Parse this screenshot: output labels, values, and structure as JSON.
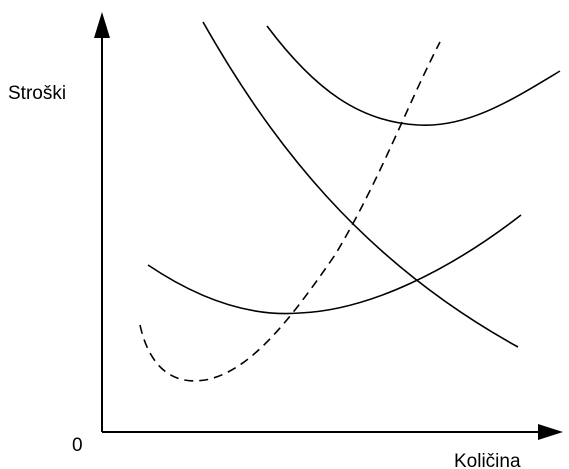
{
  "figure": {
    "y_axis_label": "Stroški",
    "x_axis_label": "Količina",
    "origin_label": "0",
    "line_color": "#000000",
    "background_color": "#ffffff",
    "curves": [
      {
        "name_id": "atc-curve",
        "style": "solid"
      },
      {
        "name_id": "afc-curve",
        "style": "solid"
      },
      {
        "name_id": "avc-curve",
        "style": "solid"
      },
      {
        "name_id": "mc-curve",
        "style": "dashed"
      },
      {
        "name_id": "upper-u-curve",
        "style": "solid"
      }
    ]
  }
}
